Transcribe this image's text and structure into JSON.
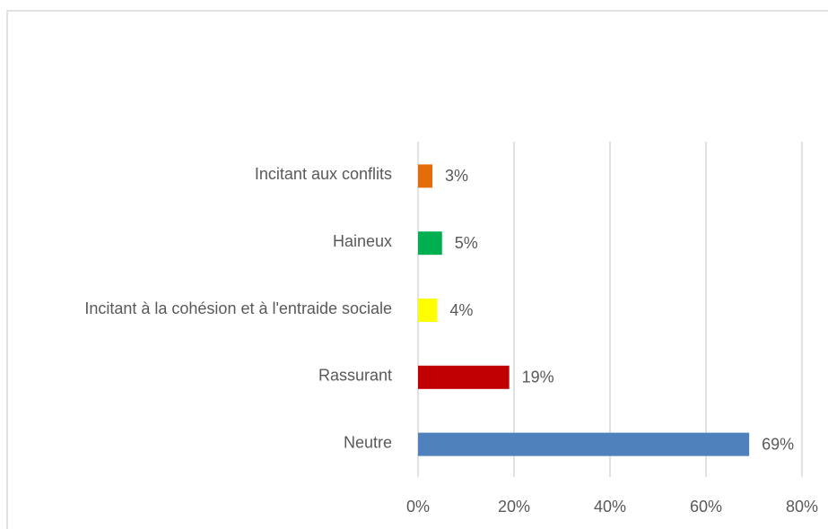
{
  "chart_data": {
    "type": "barh",
    "categories": [
      "Incitant aux conflits",
      "Haineux",
      "Incitant à la cohésion et à l'entraide sociale",
      "Rassurant",
      "Neutre"
    ],
    "values": [
      3,
      5,
      4,
      19,
      69
    ],
    "value_labels": [
      "3%",
      "5%",
      "4%",
      "19%",
      "69%"
    ],
    "colors": [
      "#e46c0a",
      "#00b050",
      "#ffff00",
      "#c00000",
      "#4f81bd"
    ],
    "xlim": [
      0,
      80
    ],
    "xticks": [
      {
        "value": 0,
        "label": "0%"
      },
      {
        "value": 20,
        "label": "20%"
      },
      {
        "value": 40,
        "label": "40%"
      },
      {
        "value": 60,
        "label": "60%"
      },
      {
        "value": 80,
        "label": "80%"
      }
    ],
    "grid": true
  }
}
